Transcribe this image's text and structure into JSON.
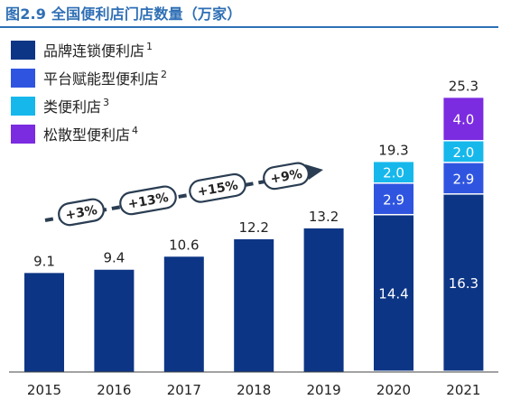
{
  "title": "图2.9 全国便利店门店数量（万家）",
  "colors": {
    "chain": "#0d3585",
    "platform": "#2f55e0",
    "category": "#16b8ec",
    "dispersed": "#7b2be0",
    "title": "#2f6fb5"
  },
  "chart_data": {
    "type": "bar",
    "stacked": true,
    "categories": [
      "2015",
      "2016",
      "2017",
      "2018",
      "2019",
      "2020",
      "2021"
    ],
    "series": [
      {
        "name": "品牌连锁便利店",
        "sup": "1",
        "color_key": "chain",
        "values": [
          9.1,
          9.4,
          10.6,
          12.2,
          13.2,
          14.4,
          16.3
        ]
      },
      {
        "name": "平台赋能型便利店",
        "sup": "2",
        "color_key": "platform",
        "values": [
          null,
          null,
          null,
          null,
          null,
          2.9,
          2.9
        ]
      },
      {
        "name": "类便利店",
        "sup": "3",
        "color_key": "category",
        "values": [
          null,
          null,
          null,
          null,
          null,
          2.0,
          2.0
        ]
      },
      {
        "name": "松散型便利店",
        "sup": "4",
        "color_key": "dispersed",
        "values": [
          null,
          null,
          null,
          null,
          null,
          null,
          4.0
        ]
      }
    ],
    "totals": [
      9.1,
      9.4,
      10.6,
      12.2,
      13.2,
      19.3,
      25.3
    ],
    "growth_labels": [
      "+3%",
      "+13%",
      "+15%",
      "+9%"
    ],
    "ylim": [
      0,
      27
    ],
    "legend_position": "top-left",
    "grid": false
  }
}
